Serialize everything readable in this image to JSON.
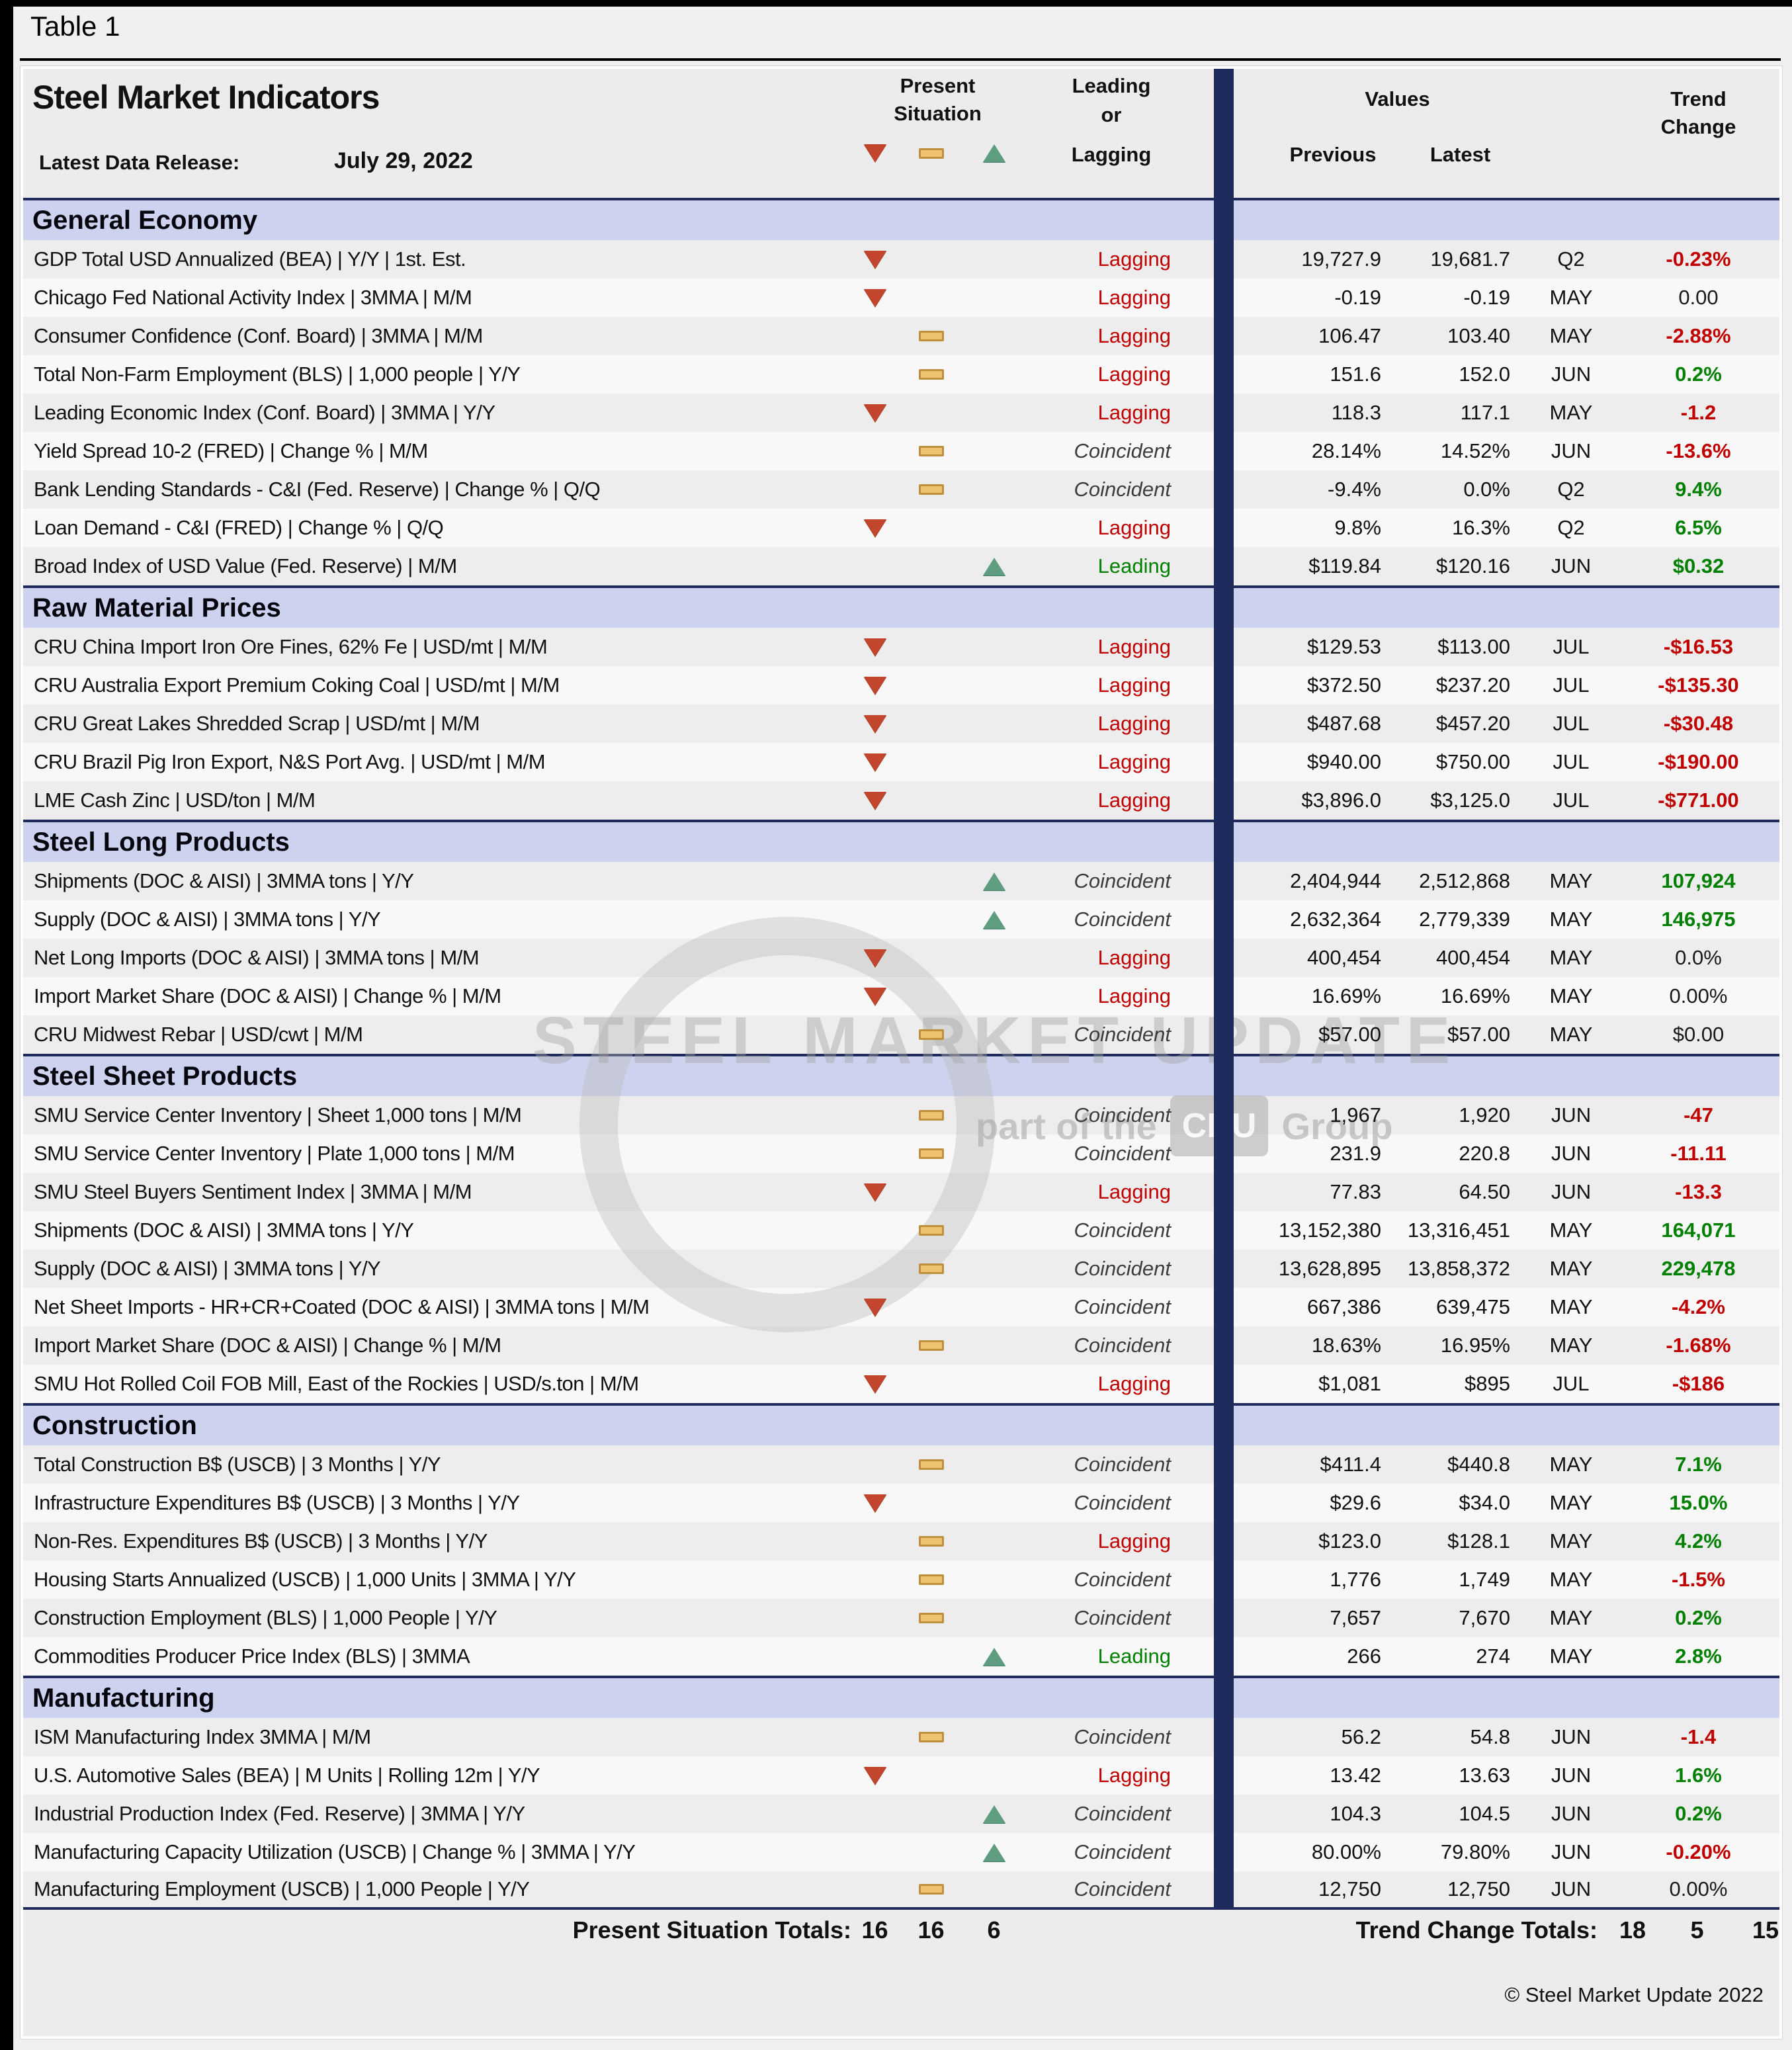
{
  "page": {
    "table_label": "Table 1",
    "title": "Steel Market Indicators",
    "release_label": "Latest Data Release:",
    "release_date": "July 29, 2022",
    "copyright": "© Steel Market Update 2022"
  },
  "columns": {
    "present_line1": "Present",
    "present_line2": "Situation",
    "lead_line1": "Leading",
    "lead_line2": "or",
    "lead_line3": "Lagging",
    "values": "Values",
    "previous": "Previous",
    "latest": "Latest",
    "trend_line1": "Trend",
    "trend_line2": "Change"
  },
  "legend_icons": [
    "down-triangle",
    "dash",
    "up-triangle"
  ],
  "colors": {
    "section_bg": "#cdd2ef",
    "navy_bar": "#1e2b5c",
    "lagging_red": "#c00000",
    "leading_green": "#008000",
    "coincident_gray": "#3d3d3d",
    "negative": "#c00000",
    "positive": "#008000",
    "icon_down": "#c2462e",
    "icon_dash": "#eec36f",
    "icon_up": "#5f9d80"
  },
  "watermark": {
    "main": "STEEL MARKET UPDATE",
    "sub_prefix": "part of the",
    "sub_box": "CRU",
    "sub_suffix": "Group"
  },
  "sections": [
    {
      "name": "General Economy",
      "rows": [
        {
          "label": "GDP Total USD Annualized (BEA) | Y/Y | 1st. Est.",
          "icon": "down",
          "classification": "Lagging",
          "previous": "19,727.9",
          "latest": "19,681.7",
          "month": "Q2",
          "change": "-0.23%",
          "change_color": "negative"
        },
        {
          "label": "Chicago Fed National Activity Index | 3MMA | M/M",
          "icon": "down",
          "classification": "Lagging",
          "previous": "-0.19",
          "latest": "-0.19",
          "month": "MAY",
          "change": "0.00",
          "change_color": "neutral"
        },
        {
          "label": "Consumer Confidence (Conf. Board) | 3MMA | M/M",
          "icon": "dash",
          "classification": "Lagging",
          "previous": "106.47",
          "latest": "103.40",
          "month": "MAY",
          "change": "-2.88%",
          "change_color": "negative"
        },
        {
          "label": "Total Non-Farm Employment (BLS) | 1,000 people | Y/Y",
          "icon": "dash",
          "classification": "Lagging",
          "previous": "151.6",
          "latest": "152.0",
          "month": "JUN",
          "change": "0.2%",
          "change_color": "positive"
        },
        {
          "label": "Leading Economic Index (Conf. Board) | 3MMA | Y/Y",
          "icon": "down",
          "classification": "Lagging",
          "previous": "118.3",
          "latest": "117.1",
          "month": "MAY",
          "change": "-1.2",
          "change_color": "negative"
        },
        {
          "label": "Yield Spread 10-2 (FRED) | Change % | M/M",
          "icon": "dash",
          "classification": "Coincident",
          "previous": "28.14%",
          "latest": "14.52%",
          "month": "JUN",
          "change": "-13.6%",
          "change_color": "negative"
        },
        {
          "label": "Bank Lending Standards - C&I (Fed. Reserve) | Change % | Q/Q",
          "icon": "dash",
          "classification": "Coincident",
          "previous": "-9.4%",
          "latest": "0.0%",
          "month": "Q2",
          "change": "9.4%",
          "change_color": "positive"
        },
        {
          "label": "Loan Demand - C&I (FRED) | Change % | Q/Q",
          "icon": "down",
          "classification": "Lagging",
          "previous": "9.8%",
          "latest": "16.3%",
          "month": "Q2",
          "change": "6.5%",
          "change_color": "positive"
        },
        {
          "label": "Broad Index of USD Value (Fed. Reserve) | M/M",
          "icon": "up",
          "classification": "Leading",
          "previous": "$119.84",
          "latest": "$120.16",
          "month": "JUN",
          "change": "$0.32",
          "change_color": "positive"
        }
      ]
    },
    {
      "name": "Raw Material Prices",
      "rows": [
        {
          "label": "CRU China Import Iron Ore Fines, 62% Fe | USD/mt | M/M",
          "icon": "down",
          "classification": "Lagging",
          "previous": "$129.53",
          "latest": "$113.00",
          "month": "JUL",
          "change": "-$16.53",
          "change_color": "negative"
        },
        {
          "label": "CRU Australia Export Premium Coking Coal | USD/mt | M/M",
          "icon": "down",
          "classification": "Lagging",
          "previous": "$372.50",
          "latest": "$237.20",
          "month": "JUL",
          "change": "-$135.30",
          "change_color": "negative"
        },
        {
          "label": "CRU Great Lakes Shredded Scrap | USD/mt | M/M",
          "icon": "down",
          "classification": "Lagging",
          "previous": "$487.68",
          "latest": "$457.20",
          "month": "JUL",
          "change": "-$30.48",
          "change_color": "negative"
        },
        {
          "label": "CRU Brazil Pig Iron Export, N&S Port Avg. | USD/mt | M/M",
          "icon": "down",
          "classification": "Lagging",
          "previous": "$940.00",
          "latest": "$750.00",
          "month": "JUL",
          "change": "-$190.00",
          "change_color": "negative"
        },
        {
          "label": "LME Cash Zinc | USD/ton | M/M",
          "icon": "down",
          "classification": "Lagging",
          "previous": "$3,896.0",
          "latest": "$3,125.0",
          "month": "JUL",
          "change": "-$771.00",
          "change_color": "negative"
        }
      ]
    },
    {
      "name": "Steel Long Products",
      "rows": [
        {
          "label": "Shipments (DOC & AISI) | 3MMA tons | Y/Y",
          "icon": "up",
          "classification": "Coincident",
          "previous": "2,404,944",
          "latest": "2,512,868",
          "month": "MAY",
          "change": "107,924",
          "change_color": "positive"
        },
        {
          "label": "Supply (DOC & AISI) | 3MMA tons | Y/Y",
          "icon": "up",
          "classification": "Coincident",
          "previous": "2,632,364",
          "latest": "2,779,339",
          "month": "MAY",
          "change": "146,975",
          "change_color": "positive"
        },
        {
          "label": "Net Long Imports (DOC & AISI) | 3MMA tons | M/M",
          "icon": "down",
          "classification": "Lagging",
          "previous": "400,454",
          "latest": "400,454",
          "month": "MAY",
          "change": "0.0%",
          "change_color": "neutral"
        },
        {
          "label": "Import Market Share (DOC & AISI) | Change % | M/M",
          "icon": "down",
          "classification": "Lagging",
          "previous": "16.69%",
          "latest": "16.69%",
          "month": "MAY",
          "change": "0.00%",
          "change_color": "neutral"
        },
        {
          "label": "CRU Midwest Rebar | USD/cwt | M/M",
          "icon": "dash",
          "classification": "Coincident",
          "previous": "$57.00",
          "latest": "$57.00",
          "month": "MAY",
          "change": "$0.00",
          "change_color": "neutral"
        }
      ]
    },
    {
      "name": "Steel Sheet Products",
      "rows": [
        {
          "label": "SMU Service Center Inventory | Sheet 1,000 tons | M/M",
          "icon": "dash",
          "classification": "Coincident",
          "previous": "1,967",
          "latest": "1,920",
          "month": "JUN",
          "change": "-47",
          "change_color": "negative"
        },
        {
          "label": "SMU Service Center Inventory | Plate 1,000 tons | M/M",
          "icon": "dash",
          "classification": "Coincident",
          "previous": "231.9",
          "latest": "220.8",
          "month": "JUN",
          "change": "-11.11",
          "change_color": "negative"
        },
        {
          "label": "SMU Steel Buyers Sentiment Index | 3MMA | M/M",
          "icon": "down",
          "classification": "Lagging",
          "previous": "77.83",
          "latest": "64.50",
          "month": "JUN",
          "change": "-13.3",
          "change_color": "negative"
        },
        {
          "label": "Shipments (DOC & AISI) | 3MMA tons | Y/Y",
          "icon": "dash",
          "classification": "Coincident",
          "previous": "13,152,380",
          "latest": "13,316,451",
          "month": "MAY",
          "change": "164,071",
          "change_color": "positive"
        },
        {
          "label": "Supply (DOC & AISI) | 3MMA tons | Y/Y",
          "icon": "dash",
          "classification": "Coincident",
          "previous": "13,628,895",
          "latest": "13,858,372",
          "month": "MAY",
          "change": "229,478",
          "change_color": "positive"
        },
        {
          "label": "Net Sheet Imports - HR+CR+Coated (DOC & AISI) | 3MMA tons | M/M",
          "icon": "down",
          "classification": "Coincident",
          "previous": "667,386",
          "latest": "639,475",
          "month": "MAY",
          "change": "-4.2%",
          "change_color": "negative"
        },
        {
          "label": "Import Market Share (DOC & AISI) | Change % | M/M",
          "icon": "dash",
          "classification": "Coincident",
          "previous": "18.63%",
          "latest": "16.95%",
          "month": "MAY",
          "change": "-1.68%",
          "change_color": "negative"
        },
        {
          "label": "SMU Hot Rolled Coil FOB Mill, East of the Rockies | USD/s.ton | M/M",
          "icon": "down",
          "classification": "Lagging",
          "previous": "$1,081",
          "latest": "$895",
          "month": "JUL",
          "change": "-$186",
          "change_color": "negative"
        }
      ]
    },
    {
      "name": "Construction",
      "rows": [
        {
          "label": "Total Construction B$ (USCB) | 3 Months | Y/Y",
          "icon": "dash",
          "classification": "Coincident",
          "previous": "$411.4",
          "latest": "$440.8",
          "month": "MAY",
          "change": "7.1%",
          "change_color": "positive"
        },
        {
          "label": "Infrastructure Expenditures B$ (USCB) | 3 Months | Y/Y",
          "icon": "down",
          "classification": "Coincident",
          "previous": "$29.6",
          "latest": "$34.0",
          "month": "MAY",
          "change": "15.0%",
          "change_color": "positive"
        },
        {
          "label": "Non-Res. Expenditures B$ (USCB) | 3 Months | Y/Y",
          "icon": "dash",
          "classification": "Lagging",
          "previous": "$123.0",
          "latest": "$128.1",
          "month": "MAY",
          "change": "4.2%",
          "change_color": "positive"
        },
        {
          "label": "Housing Starts Annualized (USCB) | 1,000 Units | 3MMA | Y/Y",
          "icon": "dash",
          "classification": "Coincident",
          "previous": "1,776",
          "latest": "1,749",
          "month": "MAY",
          "change": "-1.5%",
          "change_color": "negative"
        },
        {
          "label": "Construction Employment (BLS) | 1,000 People | Y/Y",
          "icon": "dash",
          "classification": "Coincident",
          "previous": "7,657",
          "latest": "7,670",
          "month": "MAY",
          "change": "0.2%",
          "change_color": "positive"
        },
        {
          "label": "Commodities Producer Price Index (BLS) | 3MMA",
          "icon": "up",
          "classification": "Leading",
          "previous": "266",
          "latest": "274",
          "month": "MAY",
          "change": "2.8%",
          "change_color": "positive"
        }
      ]
    },
    {
      "name": "Manufacturing",
      "rows": [
        {
          "label": "ISM Manufacturing Index 3MMA | M/M",
          "icon": "dash",
          "classification": "Coincident",
          "previous": "56.2",
          "latest": "54.8",
          "month": "JUN",
          "change": "-1.4",
          "change_color": "negative"
        },
        {
          "label": "U.S. Automotive Sales (BEA) | M Units | Rolling 12m | Y/Y",
          "icon": "down",
          "classification": "Lagging",
          "previous": "13.42",
          "latest": "13.63",
          "month": "JUN",
          "change": "1.6%",
          "change_color": "positive"
        },
        {
          "label": "Industrial Production Index (Fed. Reserve) | 3MMA | Y/Y",
          "icon": "up",
          "classification": "Coincident",
          "previous": "104.3",
          "latest": "104.5",
          "month": "JUN",
          "change": "0.2%",
          "change_color": "positive"
        },
        {
          "label": "Manufacturing Capacity Utilization (USCB) | Change % | 3MMA | Y/Y",
          "icon": "up",
          "classification": "Coincident",
          "previous": "80.00%",
          "latest": "79.80%",
          "month": "JUN",
          "change": "-0.20%",
          "change_color": "negative"
        },
        {
          "label": "Manufacturing Employment (USCB) | 1,000 People | Y/Y",
          "icon": "dash",
          "classification": "Coincident",
          "previous": "12,750",
          "latest": "12,750",
          "month": "JUN",
          "change": "0.00%",
          "change_color": "neutral"
        }
      ]
    }
  ],
  "totals": {
    "present_label": "Present Situation Totals:",
    "present_values": [
      "16",
      "16",
      "6"
    ],
    "trend_label": "Trend Change Totals:",
    "trend_values": [
      "18",
      "5",
      "15"
    ]
  }
}
